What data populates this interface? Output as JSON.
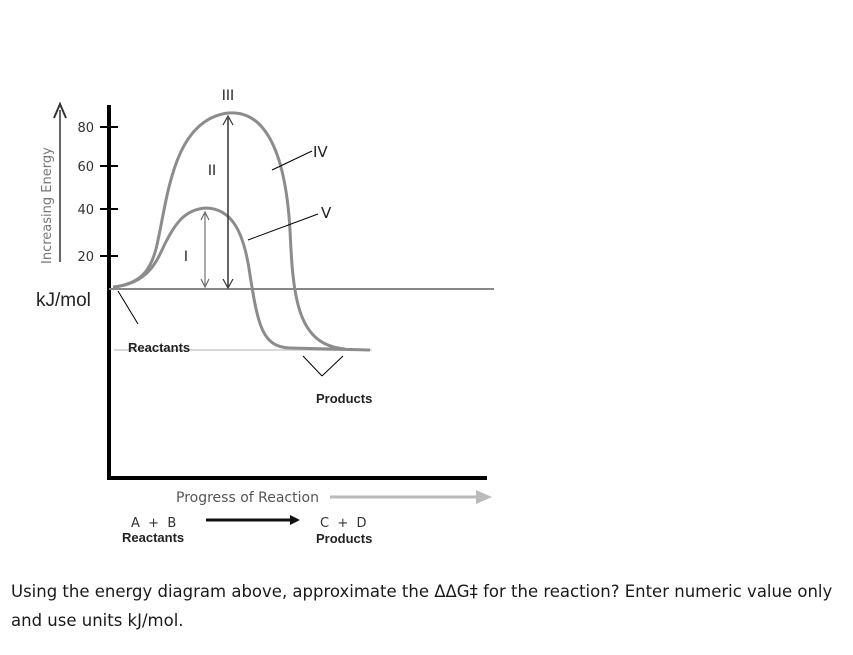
{
  "diagram": {
    "y_axis_label": "Increasing Energy",
    "y_ticks": [
      "80",
      "60",
      "40",
      "20"
    ],
    "unit_label": "kJ/mol",
    "labels": {
      "I": "I",
      "II": "II",
      "III": "III",
      "IV": "IV",
      "V": "V",
      "reactants": "Reactants",
      "products": "Products"
    },
    "x_axis_label": "Progress of Reaction",
    "reaction_left": "A  +  B",
    "reaction_left_sub": "Reactants",
    "reaction_right": "C  +  D",
    "reaction_right_sub": "Products",
    "colors": {
      "curve": "#8a8a8a",
      "axis": "#000000",
      "arrow": "#3a3a3a"
    }
  },
  "question": {
    "text": "Using the energy diagram above, approximate the ΔΔG‡ for the reaction? Enter numeric value only and use units kJ/mol."
  }
}
